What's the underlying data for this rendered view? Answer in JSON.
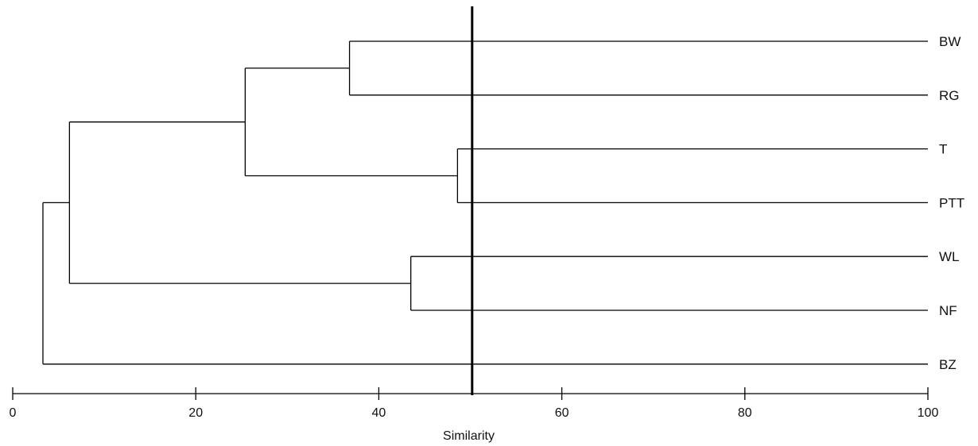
{
  "chart_data": {
    "type": "dendrogram",
    "xlabel": "Similarity",
    "xlim": [
      0,
      100
    ],
    "x_ticks": [
      0,
      20,
      40,
      60,
      80,
      100
    ],
    "leaves": [
      "BW",
      "RG",
      "T",
      "PTT",
      "WL",
      "NF",
      "BZ"
    ],
    "cut_line_similarity": 50.2,
    "clusters": [
      {
        "id": "c1",
        "members": [
          "T",
          "PTT"
        ],
        "similarity": 48.6
      },
      {
        "id": "c2",
        "members": [
          "WL",
          "NF"
        ],
        "similarity": 43.5
      },
      {
        "id": "c3",
        "members": [
          "BW",
          "RG"
        ],
        "similarity": 36.8
      },
      {
        "id": "c4",
        "members": [
          "c3",
          "c1"
        ],
        "similarity": 25.4
      },
      {
        "id": "c5",
        "members": [
          "c4",
          "c2"
        ],
        "similarity": 6.2
      },
      {
        "id": "c6",
        "members": [
          "c5",
          "BZ"
        ],
        "similarity": 3.3
      }
    ],
    "grid": false,
    "legend": "none"
  }
}
